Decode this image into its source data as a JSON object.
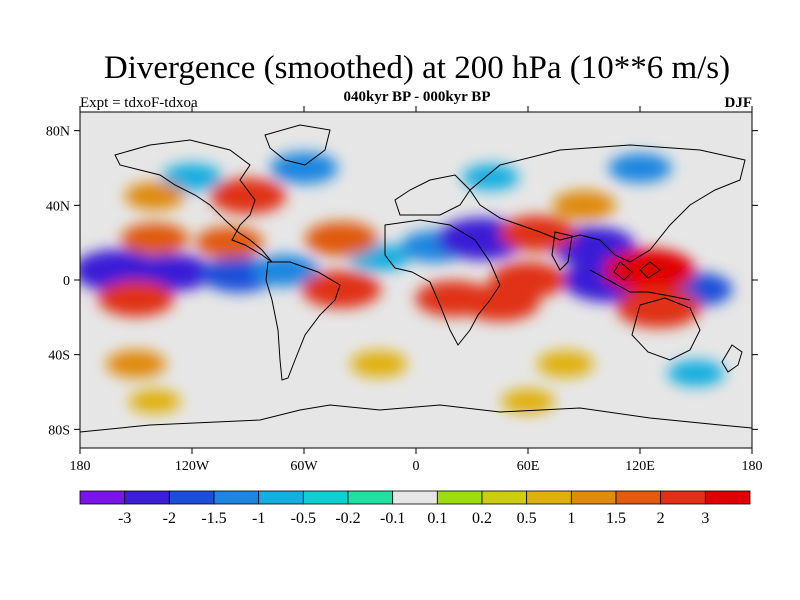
{
  "chart_data": {
    "type": "heatmap",
    "title": "Divergence (smoothed) at 200 hPa (10**6 m/s)",
    "subtitle": "040kyr BP - 000kyr BP",
    "left_label": "Expt = tdxoF-tdxoa",
    "right_label": "DJF",
    "x_ticks": [
      "180",
      "120W",
      "60W",
      "0",
      "60E",
      "120E",
      "180"
    ],
    "x_values": [
      -180,
      -120,
      -60,
      0,
      60,
      120,
      180
    ],
    "y_ticks": [
      "80N",
      "40N",
      "0",
      "40S",
      "80S"
    ],
    "y_values": [
      80,
      40,
      0,
      -40,
      -80
    ],
    "xlim": [
      -180,
      180
    ],
    "ylim": [
      -90,
      90
    ],
    "colorbar": {
      "labels": [
        "-3",
        "-2",
        "-1.5",
        "-1",
        "-0.5",
        "-0.2",
        "-0.1",
        "0.1",
        "0.2",
        "0.5",
        "1",
        "1.5",
        "2",
        "3"
      ],
      "colors": [
        "#7b14e6",
        "#3a1fd6",
        "#1c4fd8",
        "#1c86e0",
        "#14aee0",
        "#10cfd0",
        "#20dfa0",
        "#e6e6e6",
        "#9cdc10",
        "#cccc10",
        "#e0b010",
        "#e08a10",
        "#e05a10",
        "#e03018",
        "#e00000"
      ]
    },
    "fields": [
      {
        "lon": -160,
        "lat": 5,
        "value": -2.8
      },
      {
        "lon": -130,
        "lat": 4,
        "value": -2.2
      },
      {
        "lon": -95,
        "lat": 3,
        "value": -2.0
      },
      {
        "lon": -70,
        "lat": 5,
        "value": -1.5
      },
      {
        "lon": -20,
        "lat": 12,
        "value": -1.0
      },
      {
        "lon": 10,
        "lat": 18,
        "value": -1.5
      },
      {
        "lon": 35,
        "lat": 22,
        "value": -2.8
      },
      {
        "lon": 95,
        "lat": 18,
        "value": -2.5
      },
      {
        "lon": 103,
        "lat": 0,
        "value": -3.0
      },
      {
        "lon": 150,
        "lat": -5,
        "value": -1.8
      },
      {
        "lon": -140,
        "lat": 22,
        "value": 1.5
      },
      {
        "lon": -100,
        "lat": 20,
        "value": 1.5
      },
      {
        "lon": -40,
        "lat": 22,
        "value": 1.8
      },
      {
        "lon": -150,
        "lat": -10,
        "value": 2.0
      },
      {
        "lon": -40,
        "lat": -5,
        "value": 2.2
      },
      {
        "lon": 20,
        "lat": -10,
        "value": 2.0
      },
      {
        "lon": 45,
        "lat": -12,
        "value": 2.2
      },
      {
        "lon": 60,
        "lat": 0,
        "value": 2.0
      },
      {
        "lon": 65,
        "lat": 25,
        "value": 2.0
      },
      {
        "lon": 125,
        "lat": 5,
        "value": 3.0
      },
      {
        "lon": 130,
        "lat": -15,
        "value": 2.5
      },
      {
        "lon": -120,
        "lat": 55,
        "value": -1.0
      },
      {
        "lon": -60,
        "lat": 60,
        "value": -1.5
      },
      {
        "lon": 40,
        "lat": 55,
        "value": -0.8
      },
      {
        "lon": 120,
        "lat": 60,
        "value": -1.2
      },
      {
        "lon": -140,
        "lat": 45,
        "value": 1.0
      },
      {
        "lon": -90,
        "lat": 45,
        "value": 2.0
      },
      {
        "lon": 90,
        "lat": 40,
        "value": 1.2
      },
      {
        "lon": -150,
        "lat": -45,
        "value": 1.0
      },
      {
        "lon": -20,
        "lat": -45,
        "value": 0.8
      },
      {
        "lon": 80,
        "lat": -45,
        "value": 0.8
      },
      {
        "lon": 150,
        "lat": -50,
        "value": -0.8
      },
      {
        "lon": -140,
        "lat": -65,
        "value": 0.5
      },
      {
        "lon": 60,
        "lat": -65,
        "value": 0.6
      }
    ]
  }
}
